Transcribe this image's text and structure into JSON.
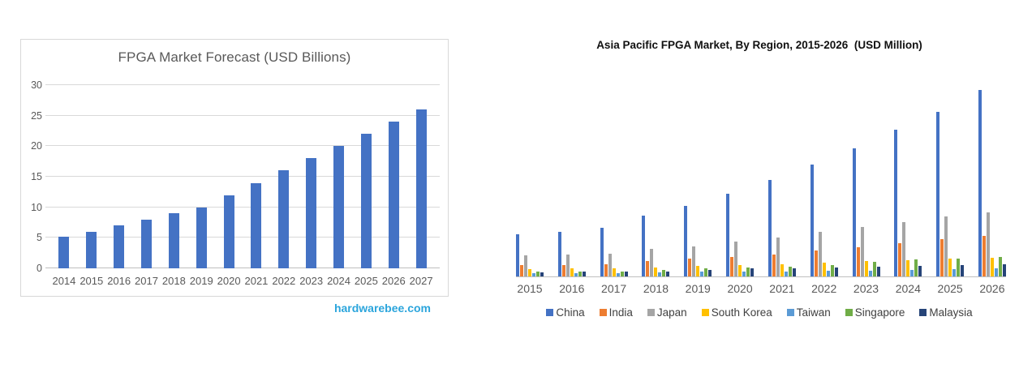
{
  "page": {
    "background": "#ffffff"
  },
  "chart_data": [
    {
      "type": "bar",
      "title": "FPGA Market Forecast (USD Billions)",
      "categories": [
        "2014",
        "2015",
        "2016",
        "2017",
        "2018",
        "2019",
        "2020",
        "2021",
        "2022",
        "2023",
        "2024",
        "2025",
        "2026",
        "2027"
      ],
      "values": [
        5.2,
        6,
        7,
        8,
        9,
        10,
        12,
        14,
        16,
        18,
        20,
        22,
        24,
        26
      ],
      "xlabel": "",
      "ylabel": "",
      "yticks": [
        0,
        5,
        10,
        15,
        20,
        25,
        30
      ],
      "ylim": [
        0,
        30
      ],
      "grid": true,
      "bar_color": "#4472C4",
      "grid_color": "#D9D9D9",
      "axis_text_color": "#595959",
      "source_note": "hardwarebee.com",
      "source_note_color": "#2BA5DC",
      "legend_position": "none"
    },
    {
      "type": "bar",
      "title": "Asia Pacific FPGA Market, By Region, 2015-2026  (USD Million)",
      "categories": [
        "2015",
        "2016",
        "2017",
        "2018",
        "2019",
        "2020",
        "2021",
        "2022",
        "2023",
        "2024",
        "2025",
        "2026"
      ],
      "series": [
        {
          "name": "China",
          "color": "#4472C4",
          "values": [
            6.5,
            6.9,
            7.5,
            9.4,
            10.9,
            12.8,
            14.9,
            17.3,
            19.8,
            22.6,
            25.4,
            28.7
          ]
        },
        {
          "name": "India",
          "color": "#ED7D31",
          "values": [
            1.7,
            1.7,
            1.9,
            2.4,
            2.7,
            3.0,
            3.4,
            4.0,
            4.5,
            5.1,
            5.7,
            6.3
          ]
        },
        {
          "name": "Japan",
          "color": "#A5A5A5",
          "values": [
            3.3,
            3.4,
            3.5,
            4.3,
            4.6,
            5.4,
            6.0,
            6.9,
            7.6,
            8.4,
            9.2,
            9.9
          ]
        },
        {
          "name": "South Korea",
          "color": "#FFC000",
          "values": [
            1.1,
            1.2,
            1.2,
            1.4,
            1.6,
            1.7,
            1.9,
            2.1,
            2.4,
            2.5,
            2.7,
            2.9
          ]
        },
        {
          "name": "Taiwan",
          "color": "#5B9BD5",
          "values": [
            0.5,
            0.5,
            0.5,
            0.6,
            0.7,
            0.8,
            0.8,
            0.9,
            0.9,
            1.0,
            1.1,
            1.3
          ]
        },
        {
          "name": "Singapore",
          "color": "#70AD47",
          "values": [
            0.8,
            0.8,
            0.8,
            1.0,
            1.3,
            1.4,
            1.5,
            1.7,
            2.3,
            2.6,
            2.8,
            3.0
          ]
        },
        {
          "name": "Malaysia",
          "color": "#264478",
          "values": [
            0.6,
            0.7,
            0.7,
            0.8,
            1.0,
            1.2,
            1.3,
            1.4,
            1.5,
            1.6,
            1.8,
            1.9
          ]
        }
      ],
      "xlabel": "",
      "ylabel": "",
      "ylim": [
        0,
        30
      ],
      "y_axis_visible": false,
      "grid": false,
      "axis_text_color": "#595959",
      "legend_position": "bottom"
    }
  ]
}
